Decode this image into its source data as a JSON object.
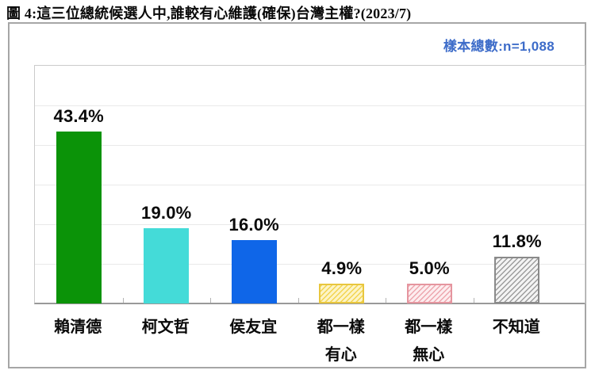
{
  "page": {
    "title": "圖 4:這三位總統候選人中,誰較有心維護(確保)台灣主權?(2023/7)",
    "sample_note": "樣本總數:n=1,088"
  },
  "colors": {
    "note_blue": "#3d6cc9",
    "axis_gray": "#999999",
    "gridline": "#e9e9e9",
    "card_border": "#a6a6a6"
  },
  "chart_data": {
    "type": "bar",
    "title": "圖 4:這三位總統候選人中,誰較有心維護(確保)台灣主權?(2023/7)",
    "sample_size_note": "樣本總數:n=1,088",
    "categories": [
      "賴清德",
      "柯文哲",
      "侯友宜",
      "都一樣\n有心",
      "都一樣\n無心",
      "不知道"
    ],
    "values": [
      43.4,
      19.0,
      16.0,
      4.9,
      5.0,
      11.8
    ],
    "value_labels": [
      "43.4%",
      "19.0%",
      "16.0%",
      "4.9%",
      "5.0%",
      "11.8%"
    ],
    "unit": "%",
    "ylim": [
      0,
      60
    ],
    "gridline_step": 10,
    "grid": "horizontal-only",
    "legend": "none",
    "bar_styles": [
      {
        "type": "solid",
        "color": "#0b9308"
      },
      {
        "type": "solid",
        "color": "#44dbd8"
      },
      {
        "type": "solid",
        "color": "#0f66e8"
      },
      {
        "type": "hatch",
        "stripe": "#f2d44f",
        "bg": "#fdf4c6",
        "border": "#e8c63e"
      },
      {
        "type": "hatch",
        "stripe": "#eda6ae",
        "bg": "#fdedef",
        "border": "#e5959f"
      },
      {
        "type": "hatch",
        "stripe": "#9d9d9d",
        "bg": "#f4f4f4",
        "border": "#8a8a8a"
      }
    ]
  }
}
